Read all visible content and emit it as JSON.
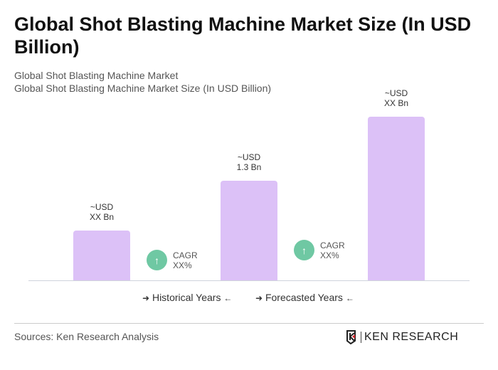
{
  "title": "Global Shot Blasting Machine Market Size (In USD Billion)",
  "subtitle1": "Global Shot Blasting Machine Market",
  "subtitle2": "Global Shot Blasting Machine Market Size (In USD Billion)",
  "chart_data": {
    "type": "bar",
    "categories": [
      "",
      "",
      ""
    ],
    "values": [
      0.65,
      1.3,
      2.14
    ],
    "data_labels": [
      [
        "~USD",
        "XX Bn"
      ],
      [
        "~USD",
        "1.3 Bn"
      ],
      [
        "~USD",
        "XX Bn"
      ]
    ],
    "bar_color": "#dcc1f7",
    "annotations": [
      {
        "line1": "CAGR",
        "line2": "XX%"
      },
      {
        "line1": "CAGR",
        "line2": "XX%"
      }
    ],
    "annotation_color": "#6fc8a3",
    "legend": [
      "Historical Years",
      "Forecasted Years"
    ],
    "legend_placement": "bottom",
    "grid": false
  },
  "source": "Sources: Ken Research Analysis",
  "logo": "KEN RESEARCH"
}
